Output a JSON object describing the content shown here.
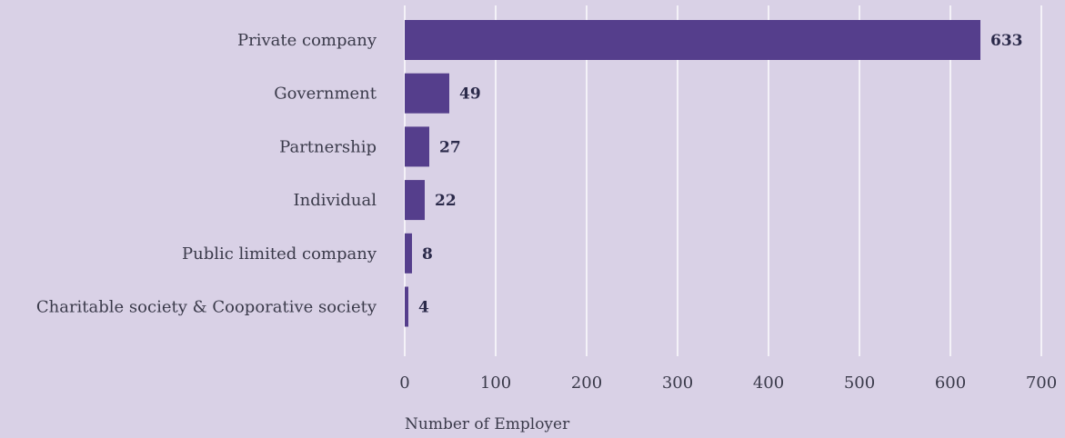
{
  "chart_data": {
    "type": "bar",
    "orientation": "horizontal",
    "categories": [
      "Private company",
      "Government",
      "Partnership",
      "Individual",
      "Public limited company",
      "Charitable society & Cooporative society"
    ],
    "values": [
      633,
      49,
      27,
      22,
      8,
      4
    ],
    "xlabel": "Number of Employer",
    "ylabel": "",
    "title": "",
    "xlim": [
      0,
      700
    ],
    "x_ticks": [
      "0",
      "100",
      "200",
      "300",
      "400",
      "500",
      "600",
      "700"
    ],
    "grid": true,
    "legend": "none",
    "colors": {
      "bar": "#553e8c",
      "background": "#d9d1e6",
      "grid": "#ffffff",
      "value_label": "#2b2a4a",
      "text": "#3a3a4a"
    }
  }
}
